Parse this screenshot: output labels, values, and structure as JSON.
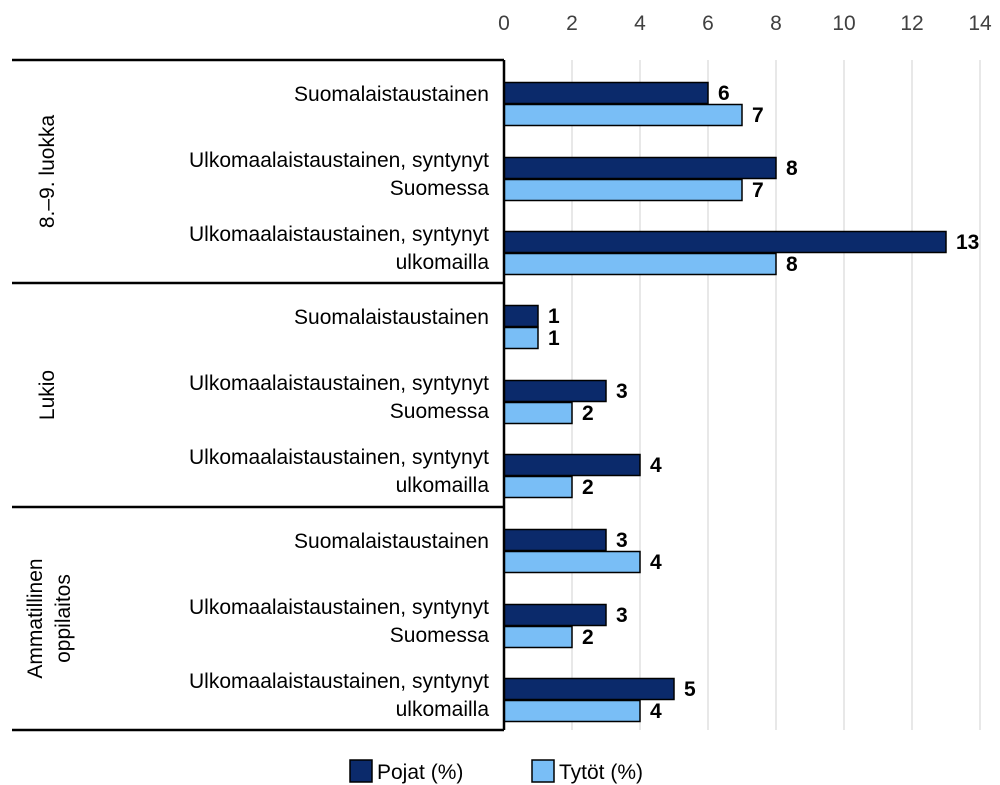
{
  "chart_data": {
    "type": "bar",
    "orientation": "horizontal",
    "xlim": [
      0,
      14
    ],
    "xticks": [
      "0",
      "2",
      "4",
      "6",
      "8",
      "10",
      "12",
      "14"
    ],
    "grid": true,
    "legend_position": "bottom",
    "groups": [
      {
        "label": "8.–9. luokka",
        "categories": [
          {
            "lines": [
              "Suomalaistaustainen"
            ],
            "values": [
              6,
              7
            ]
          },
          {
            "lines": [
              "Ulkomaalaistaustainen, syntynyt",
              "Suomessa"
            ],
            "values": [
              8,
              7
            ]
          },
          {
            "lines": [
              "Ulkomaalaistaustainen, syntynyt",
              "ulkomailla"
            ],
            "values": [
              13,
              8
            ]
          }
        ]
      },
      {
        "label": "Lukio",
        "categories": [
          {
            "lines": [
              "Suomalaistaustainen"
            ],
            "values": [
              1,
              1
            ]
          },
          {
            "lines": [
              "Ulkomaalaistaustainen, syntynyt",
              "Suomessa"
            ],
            "values": [
              3,
              2
            ]
          },
          {
            "lines": [
              "Ulkomaalaistaustainen, syntynyt",
              "ulkomailla"
            ],
            "values": [
              4,
              2
            ]
          }
        ]
      },
      {
        "label": "Ammatillinen oppilaitos",
        "label_lines": [
          "Ammatillinen",
          "oppilaitos"
        ],
        "categories": [
          {
            "lines": [
              "Suomalaistaustainen"
            ],
            "values": [
              3,
              4
            ]
          },
          {
            "lines": [
              "Ulkomaalaistaustainen, syntynyt",
              "Suomessa"
            ],
            "values": [
              3,
              2
            ]
          },
          {
            "lines": [
              "Ulkomaalaistaustainen, syntynyt",
              "ulkomailla"
            ],
            "values": [
              5,
              4
            ]
          }
        ]
      }
    ],
    "series": [
      {
        "name": "Pojat (%)",
        "color": "#0b2a6b"
      },
      {
        "name": "Tytöt (%)",
        "color": "#79bef6"
      }
    ]
  }
}
